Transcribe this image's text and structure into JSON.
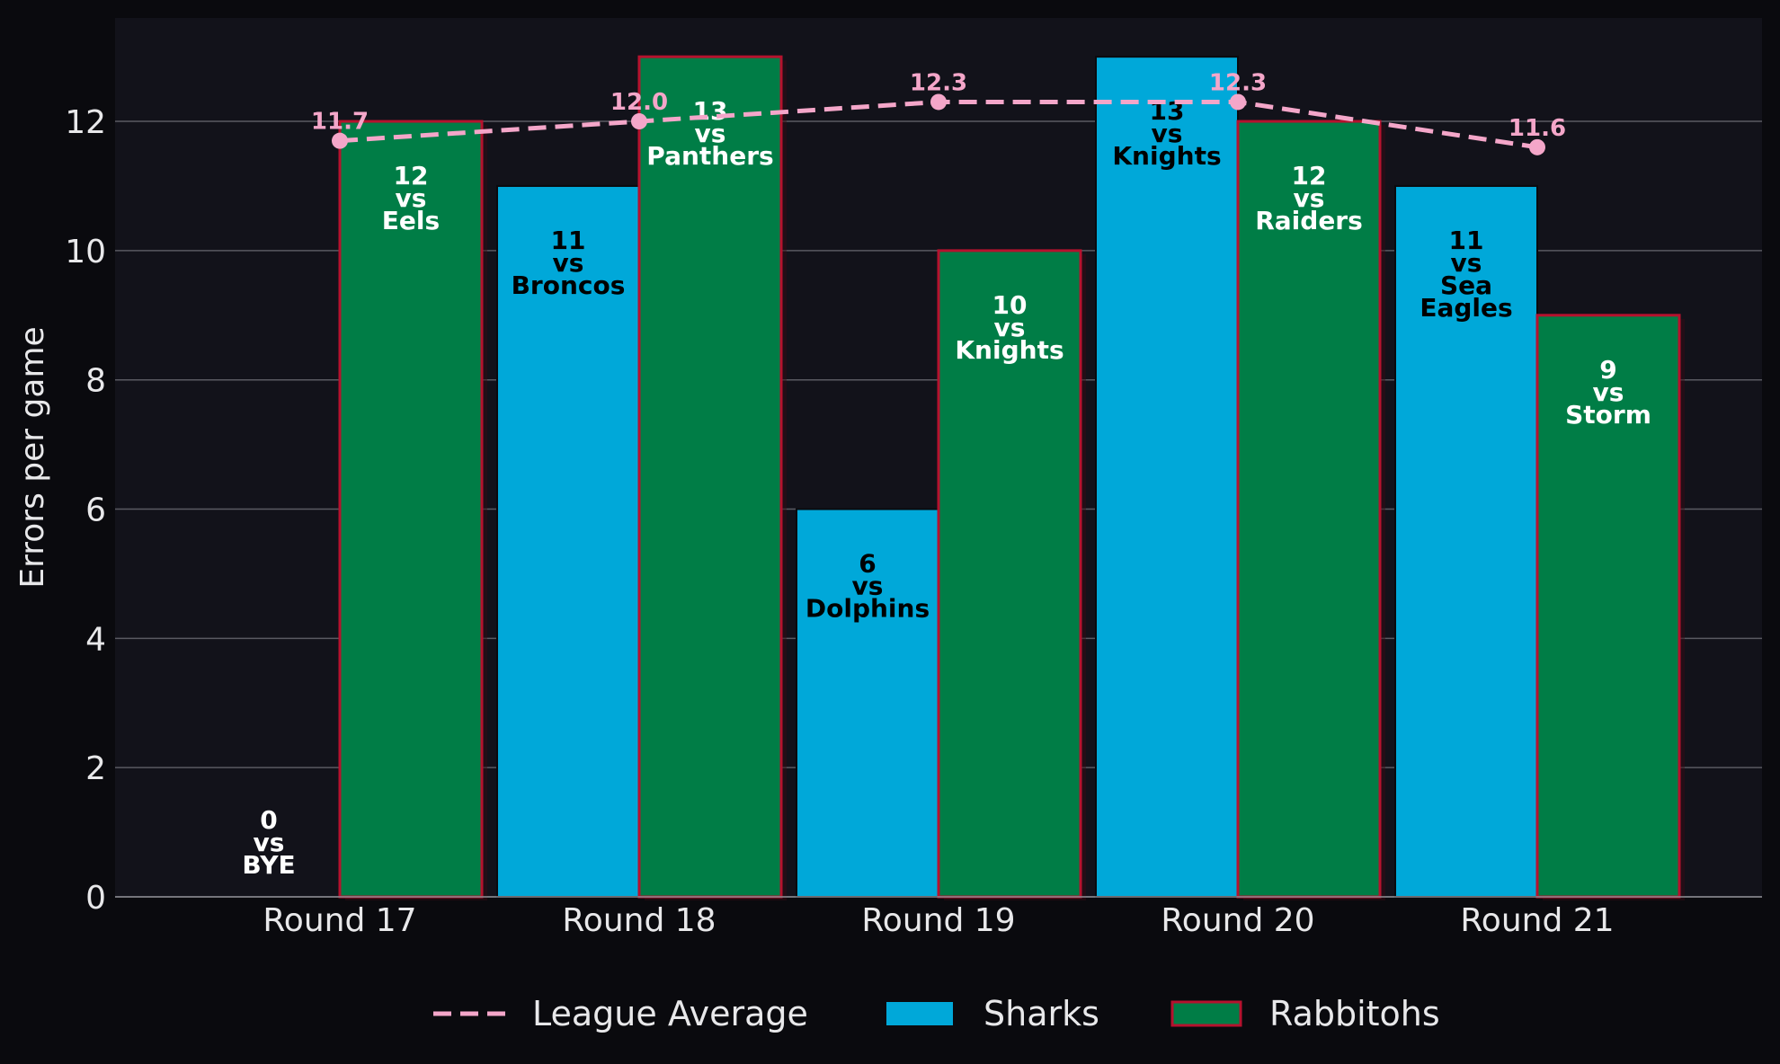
{
  "chart_data": {
    "type": "bar",
    "title": "",
    "xlabel": "",
    "ylabel": "Errors per game",
    "ylim": [
      0,
      13.6
    ],
    "yticks": [
      0,
      2,
      4,
      6,
      8,
      10,
      12
    ],
    "grid": "horizontal",
    "legend_position": "bottom-center",
    "categories": [
      "Round 17",
      "Round 18",
      "Round 19",
      "Round 20",
      "Round 21"
    ],
    "series": [
      {
        "name": "Sharks",
        "color": "#00a8d9",
        "values": [
          0,
          11,
          6,
          13,
          11
        ],
        "opponents": [
          "BYE",
          "Broncos",
          "Dolphins",
          "Knights",
          "Sea Eagles"
        ]
      },
      {
        "name": "Rabbitohs",
        "color": "#007d46",
        "edge_color": "#b5122e",
        "values": [
          12,
          13,
          10,
          12,
          9
        ],
        "opponents": [
          "Eels",
          "Panthers",
          "Knights",
          "Raiders",
          "Storm"
        ]
      }
    ],
    "league_average": {
      "name": "League Average",
      "color": "#f4a6c9",
      "style": "dashed",
      "values": [
        11.7,
        12.0,
        12.3,
        12.3,
        11.6
      ],
      "labels": [
        "11.7",
        "12.0",
        "12.3",
        "12.3",
        "11.6"
      ]
    },
    "vs_text": "vs"
  }
}
